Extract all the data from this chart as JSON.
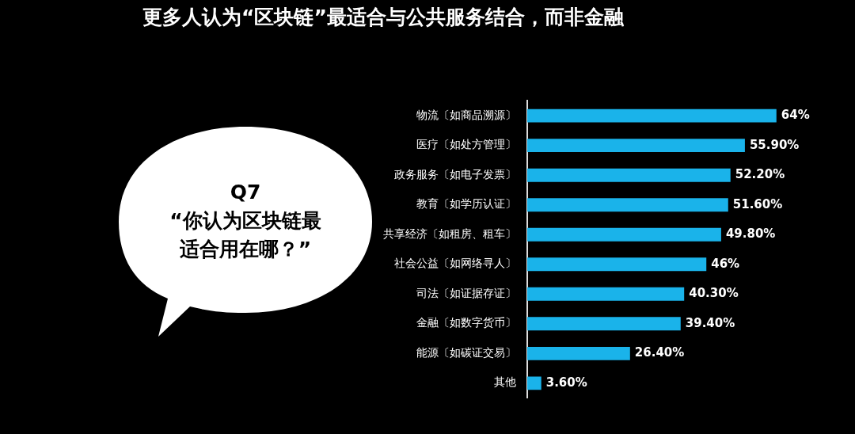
{
  "chart_data": {
    "type": "bar",
    "orientation": "horizontal",
    "title": "更多人认为“区块链”最适合与公共服务结合，而非金融",
    "annotations": [
      "Q7",
      "“你认为区块链最适合用在哪？”"
    ],
    "categories": [
      "物流〔如商品溯源〕",
      "医疗〔如处方管理〕",
      "政务服务〔如电子发票〕",
      "教育〔如学历认证〕",
      "共享经济〔如租房、租车〕",
      "社会公益〔如网络寻人〕",
      "司法〔如证据存证〕",
      "金融〔如数字货币〕",
      "能源〔如碳证交易〕",
      "其他"
    ],
    "values": [
      64,
      55.9,
      52.2,
      51.6,
      49.8,
      46,
      40.3,
      39.4,
      26.4,
      3.6
    ],
    "value_labels": [
      "64%",
      "55.90%",
      "52.20%",
      "51.60%",
      "49.80%",
      "46%",
      "40.30%",
      "39.40%",
      "26.40%",
      "3.60%"
    ],
    "color": "#1ab3ea",
    "tick_labels": "y"
  }
}
